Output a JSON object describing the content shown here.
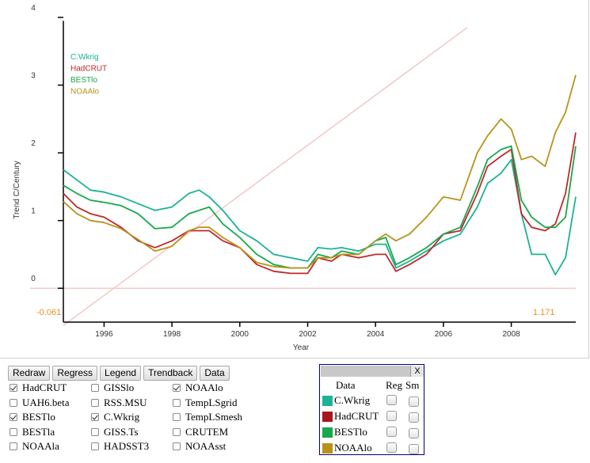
{
  "chart_data": {
    "type": "line",
    "xlabel": "Year",
    "ylabel": "Trend C/Century",
    "xlim": [
      1994.8,
      2009.9
    ],
    "ylim": [
      -0.5,
      4.0
    ],
    "x_ticks": [
      "1996",
      "1998",
      "2000",
      "2002",
      "2004",
      "2006",
      "2008"
    ],
    "y_ticks": [
      "0",
      "1",
      "2",
      "3",
      "4"
    ],
    "start_label": "-0.061",
    "end_label": "1.171",
    "legend_position": "top-left",
    "legend_entries": [
      "C.Wkrig",
      "HadCRUT",
      "BESTlo",
      "NOAAlo"
    ],
    "trendback_line": {
      "x": [
        1994.8,
        2006.7
      ],
      "y": [
        -0.55,
        3.85
      ],
      "color": "#f4c6c6"
    },
    "zero_line_color": "#f6caca",
    "series": [
      {
        "name": "C.Wkrig",
        "color": "#1ab394",
        "x": [
          1994.8,
          1995.2,
          1995.6,
          1996,
          1996.5,
          1997,
          1997.5,
          1998,
          1998.5,
          1998.8,
          1999.1,
          1999.5,
          2000,
          2000.5,
          2001,
          2001.5,
          2002,
          2002.3,
          2002.7,
          2003,
          2003.5,
          2004,
          2004.3,
          2004.6,
          2005,
          2005.5,
          2006,
          2006.5,
          2007,
          2007.3,
          2007.7,
          2008,
          2008.3,
          2008.6,
          2009,
          2009.3,
          2009.6,
          2009.9
        ],
        "y": [
          1.75,
          1.6,
          1.45,
          1.42,
          1.35,
          1.25,
          1.15,
          1.2,
          1.4,
          1.45,
          1.35,
          1.15,
          0.85,
          0.7,
          0.5,
          0.45,
          0.4,
          0.6,
          0.58,
          0.6,
          0.55,
          0.65,
          0.65,
          0.3,
          0.4,
          0.55,
          0.7,
          0.8,
          1.2,
          1.55,
          1.7,
          1.9,
          1.1,
          0.5,
          0.5,
          0.2,
          0.45,
          1.35
        ]
      },
      {
        "name": "HadCRUT",
        "color": "#c0282c",
        "x": [
          1994.8,
          1995.2,
          1995.6,
          1996,
          1996.5,
          1997,
          1997.5,
          1998,
          1998.5,
          1998.8,
          1999.1,
          1999.5,
          2000,
          2000.5,
          2001,
          2001.5,
          2002,
          2002.3,
          2002.7,
          2003,
          2003.5,
          2004,
          2004.3,
          2004.6,
          2005,
          2005.5,
          2006,
          2006.5,
          2007,
          2007.3,
          2007.7,
          2008,
          2008.3,
          2008.6,
          2009,
          2009.3,
          2009.6,
          2009.9
        ],
        "y": [
          1.4,
          1.2,
          1.1,
          1.05,
          0.9,
          0.7,
          0.6,
          0.7,
          0.85,
          0.85,
          0.85,
          0.7,
          0.6,
          0.35,
          0.25,
          0.22,
          0.22,
          0.45,
          0.4,
          0.5,
          0.45,
          0.5,
          0.5,
          0.25,
          0.35,
          0.5,
          0.8,
          0.85,
          1.4,
          1.8,
          1.95,
          2.05,
          1.1,
          0.9,
          0.85,
          0.95,
          1.4,
          2.3
        ]
      },
      {
        "name": "BESTlo",
        "color": "#16a84a",
        "x": [
          1994.8,
          1995.2,
          1995.6,
          1996,
          1996.5,
          1997,
          1997.5,
          1998,
          1998.5,
          1998.8,
          1999.1,
          1999.5,
          2000,
          2000.5,
          2001,
          2001.5,
          2002,
          2002.3,
          2002.7,
          2003,
          2003.5,
          2004,
          2004.3,
          2004.6,
          2005,
          2005.5,
          2006,
          2006.5,
          2007,
          2007.3,
          2007.7,
          2008,
          2008.3,
          2008.6,
          2009,
          2009.3,
          2009.6,
          2009.9
        ],
        "y": [
          1.52,
          1.4,
          1.3,
          1.27,
          1.22,
          1.1,
          0.88,
          0.9,
          1.1,
          1.15,
          1.2,
          0.95,
          0.75,
          0.5,
          0.35,
          0.3,
          0.3,
          0.5,
          0.45,
          0.55,
          0.5,
          0.7,
          0.75,
          0.35,
          0.45,
          0.6,
          0.8,
          0.9,
          1.5,
          1.9,
          2.05,
          2.1,
          1.3,
          1.05,
          0.9,
          0.9,
          1.05,
          2.1
        ]
      },
      {
        "name": "NOAAlo",
        "color": "#b8931a",
        "x": [
          1994.8,
          1995.2,
          1995.6,
          1996,
          1996.5,
          1997,
          1997.5,
          1998,
          1998.5,
          1998.8,
          1999.1,
          1999.5,
          2000,
          2000.5,
          2001,
          2001.5,
          2002,
          2002.3,
          2002.7,
          2003,
          2003.5,
          2004,
          2004.3,
          2004.6,
          2005,
          2005.5,
          2006,
          2006.5,
          2007,
          2007.3,
          2007.7,
          2008,
          2008.3,
          2008.6,
          2009,
          2009.3,
          2009.6,
          2009.9
        ],
        "y": [
          1.28,
          1.1,
          1.0,
          0.97,
          0.88,
          0.72,
          0.55,
          0.62,
          0.85,
          0.9,
          0.9,
          0.75,
          0.6,
          0.38,
          0.32,
          0.3,
          0.3,
          0.45,
          0.45,
          0.5,
          0.5,
          0.7,
          0.8,
          0.7,
          0.8,
          1.05,
          1.35,
          1.3,
          2.0,
          2.25,
          2.5,
          2.35,
          1.9,
          1.95,
          1.8,
          2.3,
          2.6,
          3.15
        ]
      }
    ]
  },
  "toolbar": {
    "buttons": [
      "Redraw",
      "Regress",
      "Legend",
      "Trendback",
      "Data"
    ]
  },
  "datasets": {
    "col1": [
      {
        "label": "HadCRUT",
        "checked": true
      },
      {
        "label": "UAH6.beta",
        "checked": false
      },
      {
        "label": "BESTlo",
        "checked": true
      },
      {
        "label": "BESTla",
        "checked": false
      },
      {
        "label": "NOAAla",
        "checked": false
      }
    ],
    "col2": [
      {
        "label": "GISSlo",
        "checked": false
      },
      {
        "label": "RSS.MSU",
        "checked": false
      },
      {
        "label": "C.Wkrig",
        "checked": true
      },
      {
        "label": "GISS.Ts",
        "checked": false
      },
      {
        "label": "HADSST3",
        "checked": false
      }
    ],
    "col3": [
      {
        "label": "NOAAlo",
        "checked": true
      },
      {
        "label": "TempLSgrid",
        "checked": false
      },
      {
        "label": "TempLSmesh",
        "checked": false
      },
      {
        "label": "CRUTEM",
        "checked": false
      },
      {
        "label": "NOAAsst",
        "checked": false
      }
    ]
  },
  "panel": {
    "close_label": "X",
    "headers": {
      "data": "Data",
      "reg": "Reg",
      "sm": "Sm"
    },
    "rows": [
      {
        "label": "C.Wkrig",
        "color": "#1ab394"
      },
      {
        "label": "HadCRUT",
        "color": "#a8171c"
      },
      {
        "label": "BESTlo",
        "color": "#16a84a"
      },
      {
        "label": "NOAAlo",
        "color": "#b8931a"
      }
    ]
  }
}
